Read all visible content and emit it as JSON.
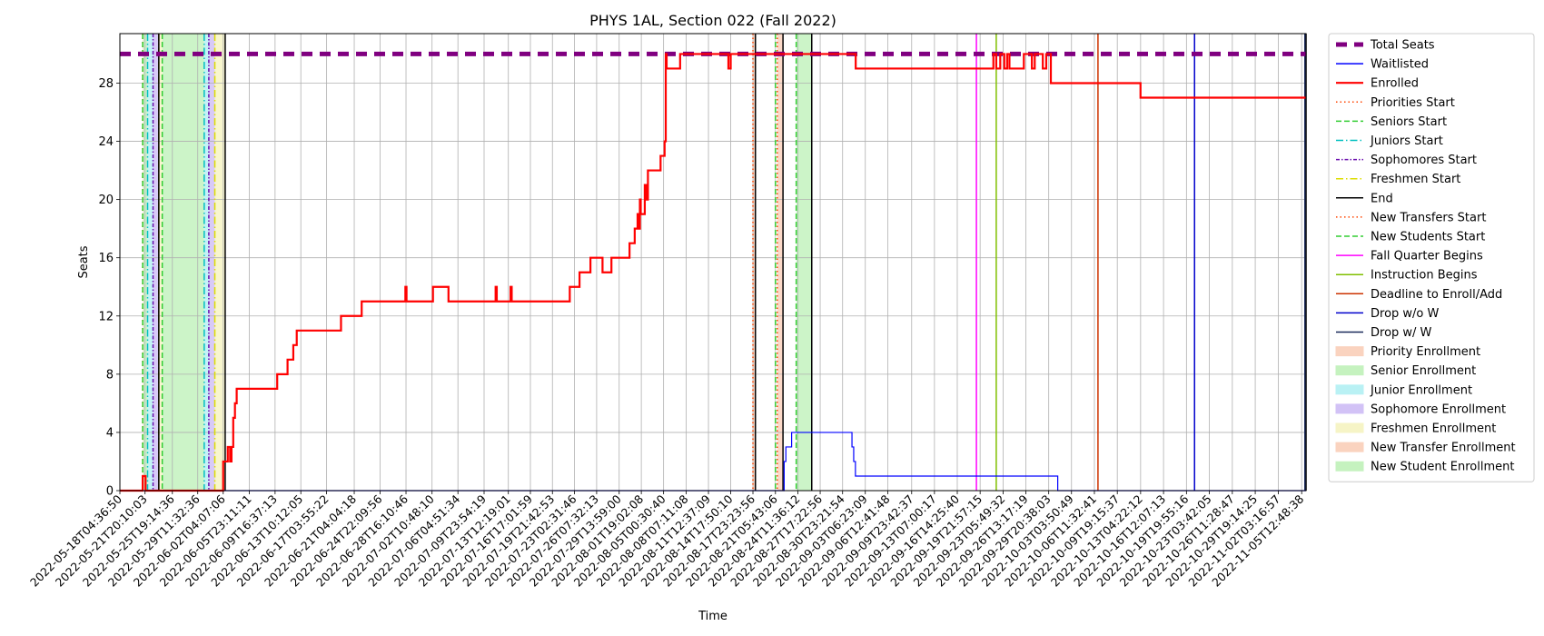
{
  "chart_data": {
    "type": "line",
    "title": "PHYS 1AL, Section 022 (Fall 2022)",
    "xlabel": "Time",
    "ylabel": "Seats",
    "x_type": "datetime",
    "xlim": [
      "2022-05-18T04:36:50",
      "2022-11-06T04:00:00"
    ],
    "ylim": [
      0,
      31.4
    ],
    "grid": true,
    "legend_position": "outside-right",
    "x_ticks": [
      "2022-05-18T04:36:50",
      "2022-05-21T20:10:03",
      "2022-05-25T19:14:36",
      "2022-05-29T11:32:36",
      "2022-06-02T04:07:06",
      "2022-06-05T23:11:11",
      "2022-06-09T16:37:13",
      "2022-06-13T10:12:05",
      "2022-06-17T03:55:22",
      "2022-06-21T04:04:18",
      "2022-06-24T22:09:56",
      "2022-06-28T16:10:46",
      "2022-07-02T10:48:10",
      "2022-07-06T04:51:34",
      "2022-07-09T23:54:19",
      "2022-07-13T12:19:01",
      "2022-07-16T17:01:59",
      "2022-07-19T21:42:53",
      "2022-07-23T02:31:46",
      "2022-07-26T07:32:13",
      "2022-07-29T13:59:00",
      "2022-08-01T19:02:08",
      "2022-08-05T00:30:40",
      "2022-08-08T07:11:08",
      "2022-08-11T12:37:09",
      "2022-08-14T17:50:10",
      "2022-08-17T23:23:56",
      "2022-08-21T05:43:06",
      "2022-08-24T11:36:12",
      "2022-08-27T17:22:56",
      "2022-08-30T23:21:54",
      "2022-09-03T06:23:09",
      "2022-09-06T12:41:48",
      "2022-09-09T23:42:37",
      "2022-09-13T07:00:17",
      "2022-09-16T14:25:40",
      "2022-09-19T21:57:15",
      "2022-09-23T05:49:32",
      "2022-09-26T13:17:19",
      "2022-09-29T20:38:03",
      "2022-10-03T03:50:49",
      "2022-10-06T11:32:41",
      "2022-10-09T19:15:37",
      "2022-10-13T04:22:12",
      "2022-10-16T12:07:13",
      "2022-10-19T19:55:16",
      "2022-10-23T03:42:05",
      "2022-10-26T11:28:47",
      "2022-10-29T19:14:25",
      "2022-11-02T03:16:57",
      "2022-11-05T12:48:38"
    ],
    "y_ticks": [
      0,
      4,
      8,
      12,
      16,
      20,
      24,
      28
    ],
    "series": [
      {
        "name": "Total Seats",
        "color": "#800080",
        "style": "dashed-thick",
        "step": true,
        "x": [
          "2022-05-18T04:36:50",
          "2022-11-06T04:00:00"
        ],
        "y": [
          30,
          30
        ]
      },
      {
        "name": "Waitlisted",
        "color": "#0000ff",
        "style": "solid-thin",
        "step": true,
        "x": [
          "2022-05-18T04:36:50",
          "2022-08-22T12:00:00",
          "2022-08-22T18:00:00",
          "2022-08-23T04:00:00",
          "2022-08-23T14:00:00",
          "2022-08-24T04:00:00",
          "2022-08-24T22:00:00",
          "2022-09-01T08:00:00",
          "2022-09-01T14:00:00",
          "2022-09-01T20:00:00",
          "2022-10-01T04:00:00",
          "2022-11-06T04:00:00"
        ],
        "y": [
          0,
          2,
          3,
          3,
          4,
          4,
          4,
          3,
          2,
          1,
          0,
          0
        ]
      },
      {
        "name": "Enrolled",
        "color": "#ff0000",
        "style": "solid-thick",
        "step": true,
        "x": [
          "2022-05-18T04:36:50",
          "2022-05-21T12:00:00",
          "2022-05-21T22:00:00",
          "2022-06-02T04:00:00",
          "2022-06-02T20:00:00",
          "2022-06-03T04:00:00",
          "2022-06-03T09:00:00",
          "2022-06-03T15:00:00",
          "2022-06-03T21:00:00",
          "2022-06-04T03:00:00",
          "2022-06-10T00:00:00",
          "2022-06-11T12:00:00",
          "2022-06-12T08:00:00",
          "2022-06-12T20:00:00",
          "2022-06-19T06:00:00",
          "2022-06-22T06:00:00",
          "2022-06-25T14:00:00",
          "2022-06-28T14:00:00",
          "2022-06-28T18:00:00",
          "2022-07-02T14:00:00",
          "2022-07-04T20:00:00",
          "2022-07-11T16:00:00",
          "2022-07-11T20:00:00",
          "2022-07-13T20:00:00",
          "2022-07-14T00:00:00",
          "2022-07-16T04:00:00",
          "2022-07-22T10:00:00",
          "2022-07-23T20:00:00",
          "2022-07-25T10:00:00",
          "2022-07-27T04:00:00",
          "2022-07-28T11:00:00",
          "2022-07-28T22:00:00",
          "2022-07-31T02:00:00",
          "2022-07-31T20:00:00",
          "2022-08-01T06:00:00",
          "2022-08-01T10:00:00",
          "2022-08-01T14:00:00",
          "2022-08-01T17:00:00",
          "2022-08-02T07:00:00",
          "2022-08-02T12:00:00",
          "2022-08-02T18:00:00",
          "2022-08-04T14:00:00",
          "2022-08-05T04:00:00",
          "2022-08-05T08:00:00",
          "2022-08-05T11:00:00",
          "2022-08-07T10:00:00",
          "2022-08-08T10:00:00",
          "2022-08-14T10:00:00",
          "2022-08-14T18:00:00",
          "2022-09-01T16:00:00",
          "2022-09-01T21:00:00",
          "2022-09-21T20:00:00",
          "2022-09-22T06:00:00",
          "2022-09-22T20:00:00",
          "2022-09-23T10:00:00",
          "2022-09-23T20:00:00",
          "2022-09-24T04:00:00",
          "2022-09-26T06:00:00",
          "2022-09-27T10:00:00",
          "2022-09-27T20:00:00",
          "2022-09-28T16:00:00",
          "2022-09-29T00:00:00",
          "2022-09-29T12:00:00",
          "2022-09-29T14:00:00",
          "2022-09-30T04:00:00",
          "2022-10-13T04:00:00",
          "2022-11-06T04:00:00"
        ],
        "y": [
          0,
          1,
          0,
          2,
          3,
          2,
          3,
          5,
          6,
          7,
          8,
          9,
          10,
          11,
          12,
          13,
          13,
          14,
          13,
          14,
          13,
          14,
          13,
          14,
          13,
          13,
          14,
          15,
          16,
          15,
          16,
          16,
          17,
          18,
          19,
          18,
          20,
          19,
          21,
          20,
          22,
          23,
          24,
          30,
          29,
          30,
          30,
          29,
          30,
          30,
          29,
          30,
          29,
          30,
          29,
          30,
          29,
          30,
          29,
          30,
          30,
          29,
          30,
          30,
          28,
          27,
          27
        ]
      }
    ],
    "vertical_lines": [
      {
        "name": "Priorities Start",
        "color": "#ff4500",
        "style": "dotted",
        "x": [
          "2022-05-21T12:00:00",
          "2022-08-17T23:23:56",
          "2022-08-21T12:00:00"
        ]
      },
      {
        "name": "Seniors Start",
        "color": "#32cd32",
        "style": "dashed",
        "x": [
          "2022-05-21T12:00:00",
          "2022-05-24T08:00:00",
          "2022-08-21T05:43:06",
          "2022-08-24T06:00:00"
        ]
      },
      {
        "name": "Juniors Start",
        "color": "#00bfbf",
        "style": "dashdot",
        "x": [
          "2022-05-22T05:00:00",
          "2022-05-30T10:00:00"
        ]
      },
      {
        "name": "Sophomores Start",
        "color": "#6a0dad",
        "style": "dashdot-dense",
        "x": [
          "2022-05-23T00:00:00",
          "2022-05-31T02:00:00"
        ]
      },
      {
        "name": "Freshmen Start",
        "color": "#dddd00",
        "style": "dashdot",
        "x": [
          "2022-05-23T20:00:00",
          "2022-05-31T23:00:00"
        ]
      },
      {
        "name": "End",
        "color": "#000000",
        "style": "solid",
        "x": [
          "2022-05-23T20:00:00",
          "2022-06-02T11:00:00",
          "2022-08-18T08:00:00",
          "2022-08-22T08:00:00",
          "2022-08-26T12:00:00",
          "2022-11-06T04:00:00"
        ]
      },
      {
        "name": "New Transfers Start",
        "color": "#ff4500",
        "style": "dotted",
        "x": []
      },
      {
        "name": "New Students Start",
        "color": "#32cd32",
        "style": "dashed",
        "x": []
      },
      {
        "name": "Fall Quarter Begins",
        "color": "#ff00ff",
        "style": "solid",
        "x": [
          "2022-09-19T09:00:00"
        ]
      },
      {
        "name": "Instruction Begins",
        "color": "#7fbf00",
        "style": "solid",
        "x": [
          "2022-09-22T06:00:00"
        ]
      },
      {
        "name": "Deadline to Enroll/Add",
        "color": "#cc3300",
        "style": "solid",
        "x": [
          "2022-10-07T00:00:00"
        ]
      },
      {
        "name": "Drop w/o W",
        "color": "#0000cc",
        "style": "solid",
        "x": [
          "2022-10-21T00:00:00"
        ]
      },
      {
        "name": "Drop w/ W",
        "color": "#1a2a5a",
        "style": "solid",
        "x": [
          "2022-11-06T00:00:00"
        ]
      }
    ],
    "shaded_regions": [
      {
        "name": "Priority Enrollment",
        "color": "#f9c9b0",
        "x": [
          [
            "2022-05-21T12:00:00",
            "2022-05-21T14:00:00"
          ],
          [
            "2022-08-17T23:23:56",
            "2022-08-18T08:00:00"
          ],
          [
            "2022-08-21T12:00:00",
            "2022-08-22T08:00:00"
          ]
        ]
      },
      {
        "name": "Senior Enrollment",
        "color": "#b7f0b0",
        "x": [
          [
            "2022-05-21T14:00:00",
            "2022-05-22T05:00:00"
          ],
          [
            "2022-05-24T08:00:00",
            "2022-05-30T10:00:00"
          ],
          [
            "2022-08-18T08:00:00",
            "2022-08-18T10:00:00"
          ]
        ]
      },
      {
        "name": "Junior Enrollment",
        "color": "#a8eef2",
        "x": [
          [
            "2022-05-22T05:00:00",
            "2022-05-23T00:00:00"
          ],
          [
            "2022-05-30T10:00:00",
            "2022-05-31T02:00:00"
          ]
        ]
      },
      {
        "name": "Sophomore Enrollment",
        "color": "#c8b4f5",
        "x": [
          [
            "2022-05-23T00:00:00",
            "2022-05-23T20:00:00"
          ],
          [
            "2022-05-31T02:00:00",
            "2022-05-31T23:00:00"
          ]
        ]
      },
      {
        "name": "Freshmen Enrollment",
        "color": "#f5f2b8",
        "x": [
          [
            "2022-05-23T20:00:00",
            "2022-05-24T08:00:00"
          ],
          [
            "2022-05-31T23:00:00",
            "2022-06-02T11:00:00"
          ]
        ]
      },
      {
        "name": "New Transfer Enrollment",
        "color": "#f9c9b0",
        "x": []
      },
      {
        "name": "New Student Enrollment",
        "color": "#b7f0b0",
        "x": [
          [
            "2022-08-24T06:00:00",
            "2022-08-26T12:00:00"
          ]
        ]
      }
    ]
  }
}
